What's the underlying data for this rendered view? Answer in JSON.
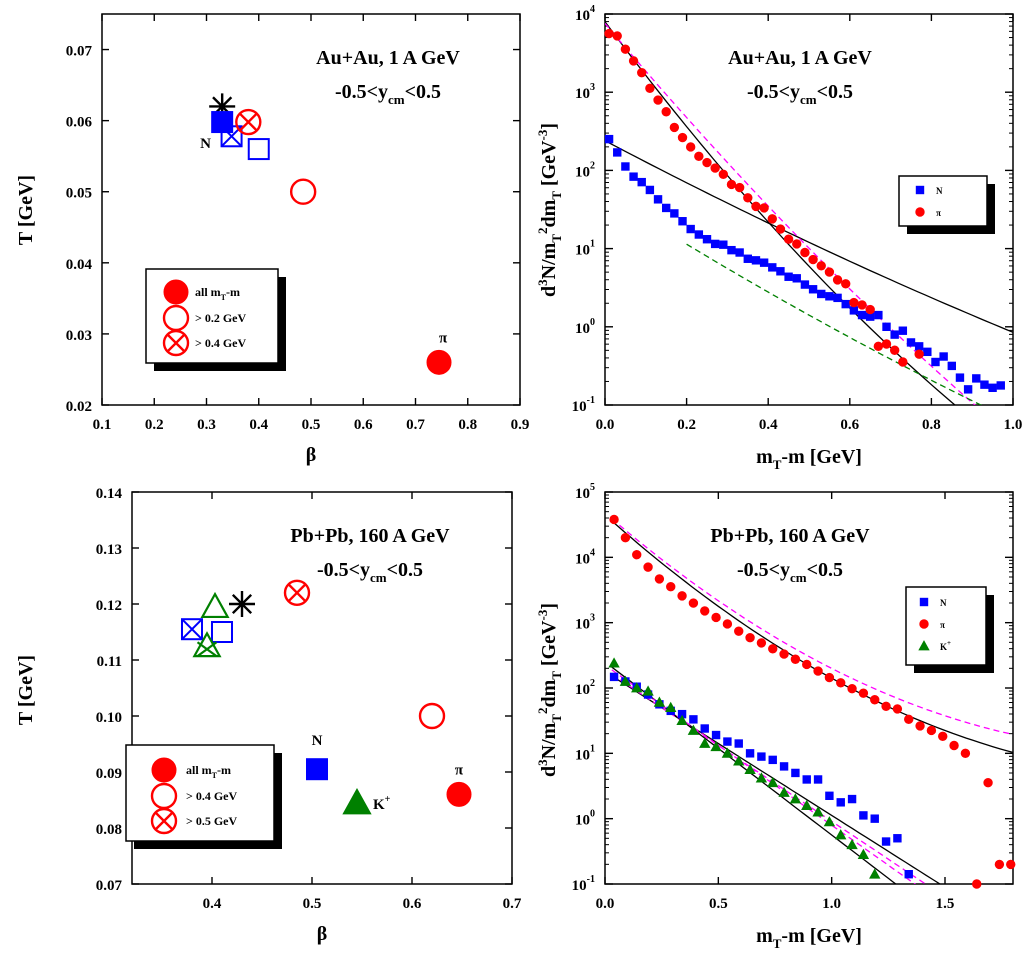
{
  "chart_data": [
    {
      "id": "a",
      "type": "scatter",
      "title": "Au+Au, 1 A GeV",
      "rapidity_cut": {
        "pre": "-0.5<y",
        "sub": "cm",
        "post": "<0.5"
      },
      "xlabel": "β",
      "ylabel": "T [GeV]",
      "xlim": [
        0.1,
        0.9
      ],
      "ylim": [
        0.02,
        0.075
      ],
      "xticks": [
        "0.1",
        "0.2",
        "0.3",
        "0.4",
        "0.5",
        "0.6",
        "0.7",
        "0.8",
        "0.9"
      ],
      "yticks": [
        "0.02",
        "0.03",
        "0.04",
        "0.05",
        "0.06",
        "0.07"
      ],
      "legend": [
        {
          "marker": "filled-circle",
          "pre": "all m",
          "sub": "T",
          "post": "-m"
        },
        {
          "marker": "open-circle",
          "label": "> 0.2 GeV"
        },
        {
          "marker": "crossed-circle",
          "label": "> 0.4 GeV"
        }
      ],
      "points": [
        {
          "marker": "asterisk",
          "color": "#000000",
          "x": 0.33,
          "y": 0.062
        },
        {
          "marker": "filled-square",
          "color": "#0000ff",
          "x": 0.33,
          "y": 0.0598,
          "label": "N"
        },
        {
          "marker": "crossed-square",
          "color": "#0000ff",
          "x": 0.348,
          "y": 0.0578
        },
        {
          "marker": "open-square",
          "color": "#0000ff",
          "x": 0.4,
          "y": 0.056
        },
        {
          "marker": "crossed-circle",
          "color": "#ff0000",
          "x": 0.38,
          "y": 0.0598
        },
        {
          "marker": "open-circle",
          "color": "#ff0000",
          "x": 0.485,
          "y": 0.05
        },
        {
          "marker": "filled-circle",
          "color": "#ff0000",
          "x": 0.745,
          "y": 0.026,
          "label": "π"
        }
      ]
    },
    {
      "id": "b",
      "type": "scatter",
      "title": "Au+Au, 1 A GeV",
      "rapidity_cut": {
        "pre": "-0.5<y",
        "sub": "cm",
        "post": "<0.5"
      },
      "xlabel": "m_T-m [GeV]",
      "ylabel": "d³N/m_T²dm_T [GeV⁻³]",
      "log_y": true,
      "xlim": [
        0,
        1.0
      ],
      "ylim_log10": [
        -1,
        4
      ],
      "xticks": [
        "0.0",
        "0.2",
        "0.4",
        "0.6",
        "0.8",
        "1.0"
      ],
      "yticks": [
        "10",
        "10",
        "10",
        "10",
        "10",
        "10"
      ],
      "ytick_exps": [
        "-1",
        "0",
        "1",
        "2",
        "3",
        "4"
      ],
      "legend": [
        {
          "marker": "filled-square",
          "color": "#0000ff",
          "label": "N"
        },
        {
          "marker": "filled-circle",
          "color": "#ff0000",
          "label": "π"
        }
      ],
      "series": [
        {
          "name": "N",
          "marker": "filled-square",
          "color": "#0000ff",
          "x": [
            0.01,
            0.03,
            0.05,
            0.07,
            0.09,
            0.11,
            0.13,
            0.15,
            0.17,
            0.19,
            0.21,
            0.23,
            0.25,
            0.27,
            0.29,
            0.31,
            0.33,
            0.35,
            0.37,
            0.39,
            0.41,
            0.43,
            0.45,
            0.47,
            0.49,
            0.51,
            0.53,
            0.55,
            0.57,
            0.59,
            0.61,
            0.63,
            0.65,
            0.67,
            0.69,
            0.71,
            0.73,
            0.75,
            0.77,
            0.79,
            0.81,
            0.83,
            0.85,
            0.87,
            0.89,
            0.91,
            0.93,
            0.95,
            0.97
          ],
          "y": [
            2.4,
            2.23,
            2.05,
            1.92,
            1.85,
            1.75,
            1.63,
            1.52,
            1.45,
            1.35,
            1.25,
            1.18,
            1.12,
            1.06,
            1.05,
            0.98,
            0.95,
            0.87,
            0.85,
            0.82,
            0.76,
            0.71,
            0.64,
            0.62,
            0.54,
            0.48,
            0.42,
            0.39,
            0.37,
            0.29,
            0.21,
            0.15,
            0.13,
            0.15,
            0.0,
            -0.1,
            -0.05,
            -0.2,
            -0.25,
            -0.32,
            -0.45,
            -0.38,
            -0.5,
            -0.65,
            -0.8,
            -0.66,
            -0.74,
            -0.78,
            -0.75
          ]
        },
        {
          "name": "π",
          "marker": "filled-circle",
          "color": "#ff0000",
          "x": [
            0.01,
            0.03,
            0.05,
            0.07,
            0.09,
            0.11,
            0.13,
            0.15,
            0.17,
            0.19,
            0.21,
            0.23,
            0.25,
            0.27,
            0.29,
            0.31,
            0.33,
            0.35,
            0.37,
            0.39,
            0.41,
            0.43,
            0.45,
            0.47,
            0.49,
            0.51,
            0.53,
            0.55,
            0.57,
            0.59,
            0.61,
            0.63,
            0.65,
            0.67,
            0.69,
            0.71,
            0.73,
            0.77
          ],
          "y": [
            3.75,
            3.72,
            3.55,
            3.4,
            3.25,
            3.05,
            2.9,
            2.75,
            2.55,
            2.42,
            2.3,
            2.18,
            2.1,
            2.03,
            1.95,
            1.82,
            1.78,
            1.65,
            1.54,
            1.52,
            1.38,
            1.25,
            1.12,
            1.06,
            0.95,
            0.86,
            0.78,
            0.7,
            0.6,
            0.55,
            0.31,
            0.28,
            0.22,
            -0.25,
            -0.22,
            -0.3,
            -0.45,
            -0.35
          ]
        }
      ]
    },
    {
      "id": "c",
      "type": "scatter",
      "title": "Pb+Pb, 160 A GeV",
      "rapidity_cut": {
        "pre": "-0.5<y",
        "sub": "cm",
        "post": "<0.5"
      },
      "xlabel": "β",
      "ylabel": "T [GeV]",
      "xlim": [
        0.32,
        0.7
      ],
      "ylim": [
        0.07,
        0.14
      ],
      "xticks": [
        "0.4",
        "0.5",
        "0.6",
        "0.7"
      ],
      "yticks": [
        "0.07",
        "0.08",
        "0.09",
        "0.10",
        "0.11",
        "0.12",
        "0.13",
        "0.14"
      ],
      "legend": [
        {
          "marker": "filled-circle",
          "pre": "all m",
          "sub": "T",
          "post": "-m"
        },
        {
          "marker": "open-circle",
          "label": "> 0.4 GeV"
        },
        {
          "marker": "crossed-circle",
          "label": "> 0.5 GeV"
        }
      ],
      "points": [
        {
          "marker": "asterisk",
          "color": "#000000",
          "x": 0.43,
          "y": 0.12
        },
        {
          "marker": "crossed-square",
          "color": "#0000ff",
          "x": 0.38,
          "y": 0.1155
        },
        {
          "marker": "open-square",
          "color": "#0000ff",
          "x": 0.41,
          "y": 0.115
        },
        {
          "marker": "open-triangle",
          "color": "#008000",
          "x": 0.403,
          "y": 0.1195
        },
        {
          "marker": "crossed-triangle",
          "color": "#008000",
          "x": 0.395,
          "y": 0.1125
        },
        {
          "marker": "crossed-circle",
          "color": "#ff0000",
          "x": 0.485,
          "y": 0.122
        },
        {
          "marker": "open-circle",
          "color": "#ff0000",
          "x": 0.62,
          "y": 0.1
        },
        {
          "marker": "filled-square",
          "color": "#0000ff",
          "x": 0.505,
          "y": 0.0905,
          "label": "N"
        },
        {
          "marker": "filled-triangle",
          "color": "#008000",
          "x": 0.545,
          "y": 0.0845,
          "label": "K",
          "label_sup": "+"
        },
        {
          "marker": "filled-circle",
          "color": "#ff0000",
          "x": 0.647,
          "y": 0.086,
          "label": "π"
        }
      ]
    },
    {
      "id": "d",
      "type": "scatter",
      "title": "Pb+Pb, 160 A GeV",
      "rapidity_cut": {
        "pre": "-0.5<y",
        "sub": "cm",
        "post": "<0.5"
      },
      "xlabel": "m_T-m [GeV]",
      "ylabel": "d³N/m_T²dm_T [GeV⁻³]",
      "log_y": true,
      "xlim": [
        0,
        1.8
      ],
      "ylim_log10": [
        -1,
        5
      ],
      "xticks": [
        "0.0",
        "0.5",
        "1.0",
        "1.5"
      ],
      "yticks": [
        "10",
        "10",
        "10",
        "10",
        "10",
        "10",
        "10"
      ],
      "ytick_exps": [
        "-1",
        "0",
        "1",
        "2",
        "3",
        "4",
        "5"
      ],
      "legend": [
        {
          "marker": "filled-square",
          "color": "#0000ff",
          "label": "N"
        },
        {
          "marker": "filled-circle",
          "color": "#ff0000",
          "label": "π"
        },
        {
          "marker": "filled-triangle",
          "color": "#008000",
          "label": "K",
          "label_sup": "+"
        }
      ],
      "series": [
        {
          "name": "π",
          "marker": "filled-circle",
          "color": "#ff0000",
          "x": [
            0.04,
            0.09,
            0.14,
            0.19,
            0.24,
            0.29,
            0.34,
            0.39,
            0.44,
            0.49,
            0.54,
            0.59,
            0.64,
            0.69,
            0.74,
            0.79,
            0.84,
            0.89,
            0.94,
            0.99,
            1.04,
            1.09,
            1.14,
            1.19,
            1.24,
            1.29,
            1.34,
            1.39,
            1.44,
            1.49,
            1.54,
            1.59,
            1.64,
            1.69,
            1.74,
            1.79
          ],
          "y": [
            4.58,
            4.3,
            4.04,
            3.85,
            3.67,
            3.55,
            3.41,
            3.3,
            3.18,
            3.08,
            2.98,
            2.87,
            2.77,
            2.69,
            2.6,
            2.52,
            2.44,
            2.36,
            2.26,
            2.16,
            2.08,
            1.99,
            1.92,
            1.82,
            1.72,
            1.68,
            1.52,
            1.42,
            1.35,
            1.26,
            1.12,
            1.0,
            -1.0,
            0.55,
            -0.7,
            -0.7
          ]
        },
        {
          "name": "N",
          "marker": "filled-square",
          "color": "#0000ff",
          "x": [
            0.04,
            0.09,
            0.14,
            0.19,
            0.24,
            0.29,
            0.34,
            0.39,
            0.44,
            0.49,
            0.54,
            0.59,
            0.64,
            0.69,
            0.74,
            0.79,
            0.84,
            0.89,
            0.94,
            0.99,
            1.04,
            1.09,
            1.14,
            1.19,
            1.24,
            1.29,
            1.34
          ],
          "y": [
            2.17,
            2.1,
            2.02,
            1.9,
            1.75,
            1.65,
            1.6,
            1.52,
            1.38,
            1.28,
            1.18,
            1.15,
            1.0,
            0.95,
            0.9,
            0.8,
            0.7,
            0.6,
            0.6,
            0.35,
            0.25,
            0.3,
            0.05,
            0.0,
            -0.35,
            -0.3,
            -0.85
          ]
        },
        {
          "name": "K+",
          "marker": "filled-triangle",
          "color": "#008000",
          "x": [
            0.04,
            0.09,
            0.14,
            0.19,
            0.24,
            0.29,
            0.34,
            0.39,
            0.44,
            0.49,
            0.54,
            0.59,
            0.64,
            0.69,
            0.74,
            0.79,
            0.84,
            0.89,
            0.94,
            0.99,
            1.04,
            1.09,
            1.14,
            1.19
          ],
          "y": [
            2.38,
            2.1,
            2.0,
            1.95,
            1.78,
            1.7,
            1.5,
            1.35,
            1.15,
            1.1,
            1.0,
            0.88,
            0.75,
            0.62,
            0.55,
            0.4,
            0.3,
            0.2,
            0.1,
            -0.05,
            -0.25,
            -0.4,
            -0.55,
            -0.85
          ]
        }
      ]
    }
  ]
}
